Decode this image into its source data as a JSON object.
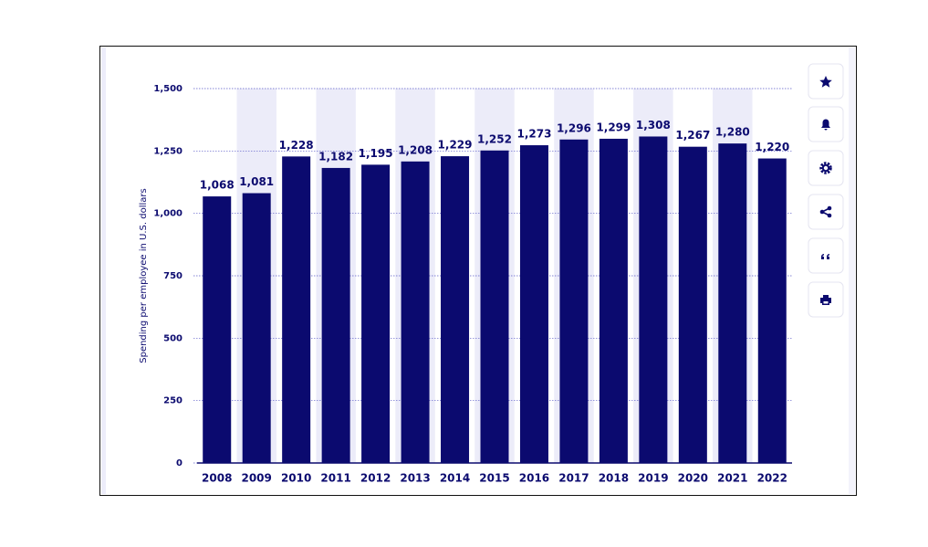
{
  "chart_data": {
    "type": "bar",
    "y_axis_label": "Spending per employee in U.S. dollars",
    "categories": [
      "2008",
      "2009",
      "2010",
      "2011",
      "2012",
      "2013",
      "2014",
      "2015",
      "2016",
      "2017",
      "2018",
      "2019",
      "2020",
      "2021",
      "2022"
    ],
    "values": [
      1068,
      1081,
      1228,
      1182,
      1195,
      1208,
      1229,
      1252,
      1273,
      1296,
      1299,
      1308,
      1267,
      1280,
      1220
    ],
    "value_labels": [
      "1,068",
      "1,081",
      "1,228",
      "1,182",
      "1,195",
      "1,208",
      "1,229",
      "1,252",
      "1,273",
      "1,296",
      "1,299",
      "1,308",
      "1,267",
      "1,280",
      "1,220"
    ],
    "color": "#0b0a6f",
    "ylim": [
      0,
      1500
    ],
    "yticks": [
      0,
      250,
      500,
      750,
      {
        "value": 1000,
        "label": "1,000"
      },
      {
        "value": 1250,
        "label": "1,250"
      },
      {
        "value": 1500,
        "label": "1,500"
      }
    ],
    "grid": true
  }
}
